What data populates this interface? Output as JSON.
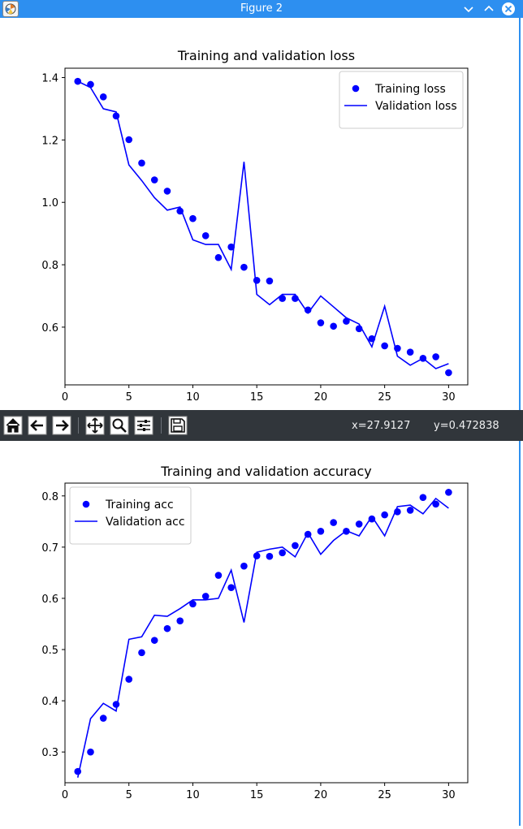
{
  "window": {
    "title": "Figure 2",
    "accent_color": "#2d8ff0",
    "icons": [
      "app-icon",
      "minimize-icon",
      "maximize-icon",
      "close-icon"
    ]
  },
  "toolbar": {
    "background_color": "#31363b",
    "icons": [
      "home-icon",
      "back-arrow-icon",
      "forward-arrow-icon",
      "pan-icon",
      "zoom-icon",
      "configure-subplots-icon",
      "save-icon"
    ],
    "coord_x": "x=27.9127",
    "coord_y": "y=0.472838"
  },
  "chart_data": [
    {
      "type": "line",
      "title": "Training and validation loss",
      "xlabel": "",
      "ylabel": "",
      "xlim": [
        0,
        31.5
      ],
      "ylim": [
        0.415,
        1.43
      ],
      "xticks": [
        0,
        5,
        10,
        15,
        20,
        25,
        30
      ],
      "yticks": [
        0.6,
        0.8,
        1.0,
        1.2,
        1.4
      ],
      "ytick_labels": [
        "0.6",
        "0.8",
        "1.0",
        "1.2",
        "1.4"
      ],
      "legend_position": "top-right",
      "grid": false,
      "x": [
        1,
        2,
        3,
        4,
        5,
        6,
        7,
        8,
        9,
        10,
        11,
        12,
        13,
        14,
        15,
        16,
        17,
        18,
        19,
        20,
        21,
        22,
        23,
        24,
        25,
        26,
        27,
        28,
        29,
        30
      ],
      "series": [
        {
          "name": "Training loss",
          "style": "points",
          "color": "#0000ff",
          "values": [
            1.388,
            1.378,
            1.338,
            1.277,
            1.201,
            1.126,
            1.072,
            1.036,
            0.972,
            0.948,
            0.893,
            0.823,
            0.857,
            0.792,
            0.75,
            0.748,
            0.692,
            0.692,
            0.655,
            0.614,
            0.603,
            0.619,
            0.595,
            0.563,
            0.54,
            0.532,
            0.52,
            0.5,
            0.505,
            0.454
          ]
        },
        {
          "name": "Validation loss",
          "style": "line",
          "color": "#0000ff",
          "values": [
            1.388,
            1.368,
            1.3,
            1.29,
            1.12,
            1.07,
            1.015,
            0.975,
            0.985,
            0.88,
            0.865,
            0.865,
            0.785,
            1.13,
            0.705,
            0.672,
            0.705,
            0.705,
            0.645,
            0.7,
            0.665,
            0.63,
            0.61,
            0.537,
            0.667,
            0.507,
            0.478,
            0.5,
            0.467,
            0.483
          ]
        }
      ]
    },
    {
      "type": "line",
      "title": "Training and validation accuracy",
      "xlabel": "",
      "ylabel": "",
      "xlim": [
        0,
        31.5
      ],
      "ylim": [
        0.24,
        0.825
      ],
      "xticks": [
        0,
        5,
        10,
        15,
        20,
        25,
        30
      ],
      "yticks": [
        0.3,
        0.4,
        0.5,
        0.6,
        0.7,
        0.8
      ],
      "ytick_labels": [
        "0.3",
        "0.4",
        "0.5",
        "0.6",
        "0.7",
        "0.8"
      ],
      "legend_position": "top-left",
      "grid": false,
      "x": [
        1,
        2,
        3,
        4,
        5,
        6,
        7,
        8,
        9,
        10,
        11,
        12,
        13,
        14,
        15,
        16,
        17,
        18,
        19,
        20,
        21,
        22,
        23,
        24,
        25,
        26,
        27,
        28,
        29,
        30
      ],
      "series": [
        {
          "name": "Training acc",
          "style": "points",
          "color": "#0000ff",
          "values": [
            0.262,
            0.3,
            0.366,
            0.393,
            0.442,
            0.494,
            0.518,
            0.541,
            0.556,
            0.589,
            0.604,
            0.645,
            0.621,
            0.663,
            0.683,
            0.682,
            0.689,
            0.703,
            0.725,
            0.731,
            0.748,
            0.731,
            0.745,
            0.755,
            0.763,
            0.769,
            0.772,
            0.797,
            0.784,
            0.807
          ]
        },
        {
          "name": "Validation acc",
          "style": "line",
          "color": "#0000ff",
          "values": [
            0.25,
            0.365,
            0.395,
            0.38,
            0.52,
            0.525,
            0.567,
            0.565,
            0.58,
            0.597,
            0.597,
            0.6,
            0.655,
            0.553,
            0.69,
            0.696,
            0.7,
            0.681,
            0.728,
            0.686,
            0.713,
            0.732,
            0.722,
            0.76,
            0.722,
            0.779,
            0.782,
            0.765,
            0.795,
            0.776
          ]
        }
      ]
    }
  ]
}
